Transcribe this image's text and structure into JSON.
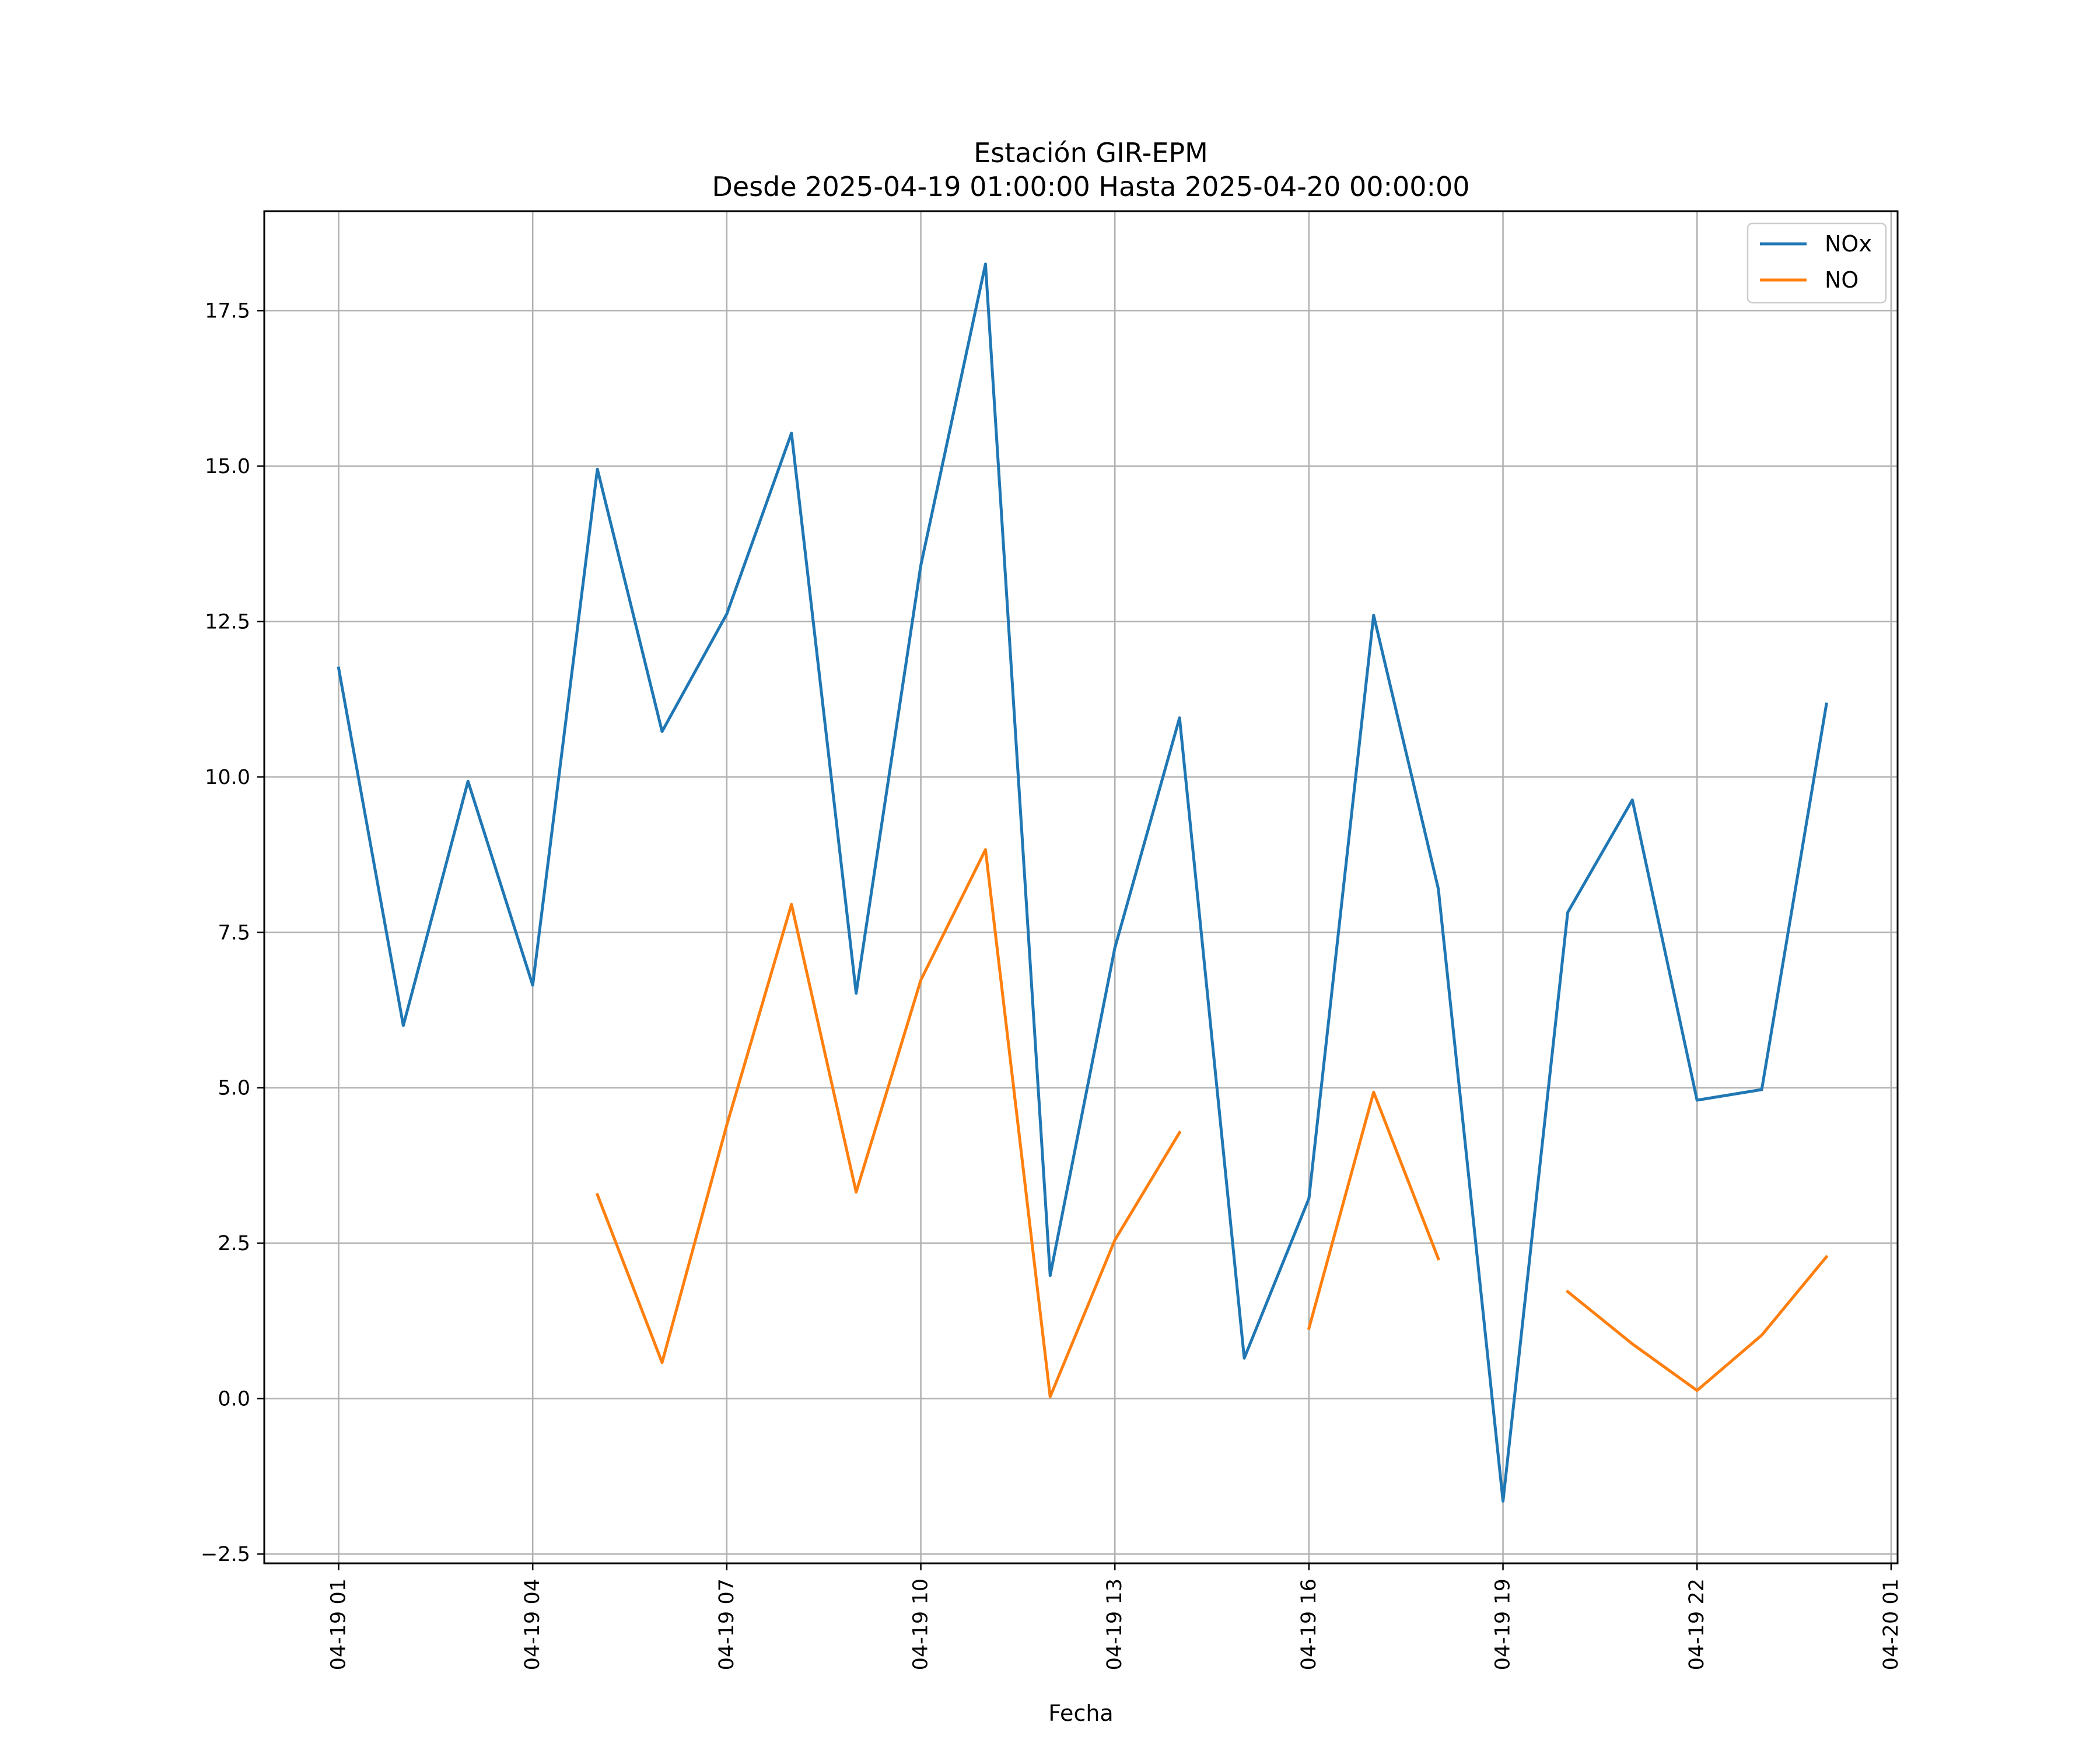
{
  "chart_data": {
    "type": "line",
    "title": "Estación GIR-EPM",
    "subtitle": "Desde 2025-04-19 01:00:00 Hasta 2025-04-20 00:00:00",
    "xlabel": "Fecha",
    "ylabel": "",
    "x_unit": "hour",
    "x_ticks": [
      {
        "hour": 0,
        "label": "04-19 01"
      },
      {
        "hour": 3,
        "label": "04-19 04"
      },
      {
        "hour": 6,
        "label": "04-19 07"
      },
      {
        "hour": 9,
        "label": "04-19 10"
      },
      {
        "hour": 12,
        "label": "04-19 13"
      },
      {
        "hour": 15,
        "label": "04-19 16"
      },
      {
        "hour": 18,
        "label": "04-19 19"
      },
      {
        "hour": 21,
        "label": "04-19 22"
      },
      {
        "hour": 24,
        "label": "04-20 01"
      }
    ],
    "y_ticks": [
      {
        "value": -2.5,
        "label": "−2.5"
      },
      {
        "value": 0,
        "label": "0.0"
      },
      {
        "value": 2.5,
        "label": "2.5"
      },
      {
        "value": 5,
        "label": "5.0"
      },
      {
        "value": 7.5,
        "label": "7.5"
      },
      {
        "value": 10,
        "label": "10.0"
      },
      {
        "value": 12.5,
        "label": "12.5"
      },
      {
        "value": 15,
        "label": "15.0"
      },
      {
        "value": 17.5,
        "label": "17.5"
      }
    ],
    "xlim": [
      -1.15,
      24.1
    ],
    "ylim": [
      -2.65,
      19.1
    ],
    "grid": true,
    "legend_position": "top-right",
    "x_hours": [
      0,
      1,
      2,
      3,
      4,
      5,
      6,
      7,
      8,
      9,
      10,
      11,
      12,
      13,
      14,
      15,
      16,
      17,
      18,
      19,
      20,
      21,
      22,
      23
    ],
    "series": [
      {
        "name": "NOx",
        "color": "#1f77b4",
        "values": [
          11.75,
          6.0,
          9.93,
          6.65,
          14.95,
          10.73,
          12.62,
          15.53,
          6.52,
          13.4,
          18.25,
          1.98,
          7.25,
          10.95,
          0.65,
          3.22,
          12.6,
          8.2,
          -1.65,
          7.82,
          9.63,
          4.8,
          4.97,
          11.17
        ]
      },
      {
        "name": "NO",
        "color": "#ff7f0e",
        "values": [
          null,
          null,
          null,
          null,
          3.28,
          0.58,
          4.4,
          7.95,
          3.32,
          6.73,
          8.83,
          0.03,
          2.55,
          4.28,
          null,
          1.13,
          4.93,
          2.25,
          null,
          1.72,
          0.88,
          0.13,
          1.02,
          2.28
        ]
      }
    ]
  }
}
